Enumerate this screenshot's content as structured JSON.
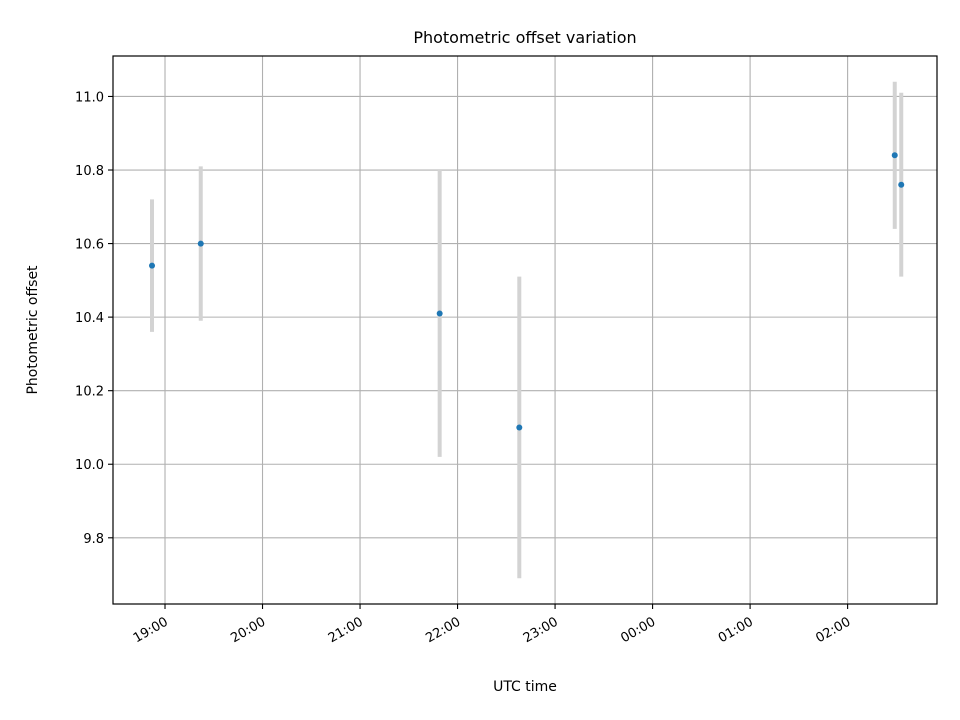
{
  "chart_data": {
    "type": "scatter",
    "title": "Photometric offset variation",
    "xlabel": "UTC time",
    "ylabel": "Photometric offset",
    "x_axis_type": "time",
    "xlim": [
      "18:28",
      "02:55"
    ],
    "ylim": [
      9.62,
      11.11
    ],
    "x_ticks": [
      "19:00",
      "20:00",
      "21:00",
      "22:00",
      "23:00",
      "00:00",
      "01:00",
      "02:00"
    ],
    "y_ticks": [
      "9.8",
      "10.0",
      "10.2",
      "10.4",
      "10.6",
      "10.8",
      "11.0"
    ],
    "grid": true,
    "legend": "none",
    "colors": {
      "point": "#1f77b4",
      "errorbar": "#d3d3d3",
      "grid": "#b0b0b0"
    },
    "points": [
      {
        "x": "18:52",
        "y": 10.54,
        "yerr": 0.18
      },
      {
        "x": "19:22",
        "y": 10.6,
        "yerr": 0.21
      },
      {
        "x": "21:49",
        "y": 10.41,
        "yerr": 0.39
      },
      {
        "x": "22:38",
        "y": 10.1,
        "yerr": 0.41
      },
      {
        "x": "02:29",
        "y": 10.84,
        "yerr": 0.2
      },
      {
        "x": "02:33",
        "y": 10.76,
        "yerr": 0.25
      }
    ]
  }
}
